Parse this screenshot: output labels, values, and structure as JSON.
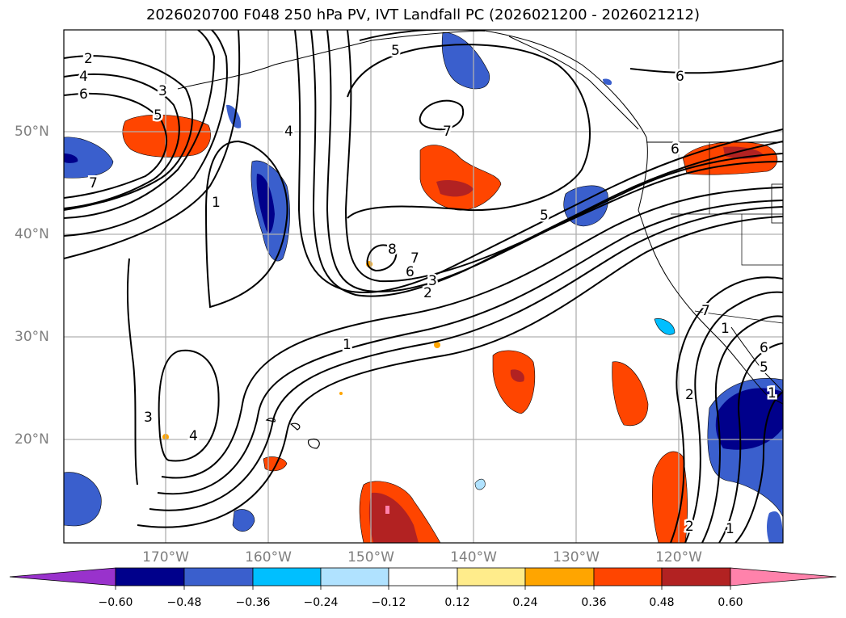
{
  "title": "2026020700 F048 250 hPa PV, IVT Landfall PC (2026021200 - 2026021212)",
  "axes": {
    "lat_labels": [
      "50°N",
      "40°N",
      "30°N",
      "20°N"
    ],
    "lon_labels": [
      "170°W",
      "160°W",
      "150°W",
      "140°W",
      "130°W",
      "120°W"
    ]
  },
  "colorbar": {
    "ticks": [
      "−0.60",
      "−0.48",
      "−0.36",
      "−0.24",
      "−0.12",
      "0.12",
      "0.24",
      "0.36",
      "0.48",
      "0.60"
    ],
    "colors": [
      "#9932cc",
      "#00008b",
      "#3a5fcd",
      "#00bfff",
      "#b0e2ff",
      "#ffffff",
      "#ffec8b",
      "#ffa500",
      "#ff4500",
      "#b22222",
      "#ff82ab"
    ]
  },
  "contour_labels": [
    "2",
    "4",
    "6",
    "3",
    "5",
    "7",
    "4",
    "1",
    "5",
    "7",
    "6",
    "8",
    "7",
    "6",
    "3",
    "2",
    "1",
    "5",
    "6",
    "7",
    "1",
    "3",
    "4",
    "2",
    "5",
    "6",
    "2",
    "1",
    "1"
  ],
  "colors": {
    "contour": "#000000",
    "grid": "#b0b0b0",
    "tick_label": "#7f7f7f"
  }
}
